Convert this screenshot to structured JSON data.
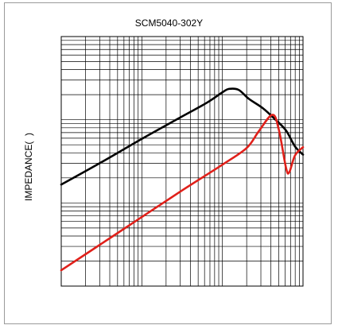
{
  "chart_data": {
    "type": "line",
    "title": "SCM5040-302Y",
    "xlabel": "",
    "ylabel": "IMPEDANCE(  )",
    "x_scale": "log",
    "y_scale": "log",
    "x_decades": 3,
    "y_decades": 3,
    "grid": true,
    "series": [
      {
        "color": "#000000",
        "points": [
          [
            0.0,
            1.22
          ],
          [
            0.5,
            1.49
          ],
          [
            1.0,
            1.77
          ],
          [
            1.5,
            2.04
          ],
          [
            1.8,
            2.2
          ],
          [
            2.0,
            2.33
          ],
          [
            2.08,
            2.37
          ],
          [
            2.2,
            2.36
          ],
          [
            2.33,
            2.25
          ],
          [
            2.5,
            2.14
          ],
          [
            2.66,
            2.0
          ],
          [
            2.79,
            1.87
          ],
          [
            2.9,
            1.68
          ],
          [
            3.0,
            1.58
          ]
        ]
      },
      {
        "color": "#e0201a",
        "points": [
          [
            0.0,
            0.19
          ],
          [
            0.5,
            0.51
          ],
          [
            1.0,
            0.83
          ],
          [
            1.5,
            1.15
          ],
          [
            2.0,
            1.46
          ],
          [
            2.3,
            1.66
          ],
          [
            2.45,
            1.86
          ],
          [
            2.62,
            2.06
          ],
          [
            2.7,
            1.88
          ],
          [
            2.79,
            1.42
          ],
          [
            2.83,
            1.37
          ],
          [
            2.9,
            1.57
          ],
          [
            3.0,
            1.67
          ]
        ]
      }
    ]
  }
}
